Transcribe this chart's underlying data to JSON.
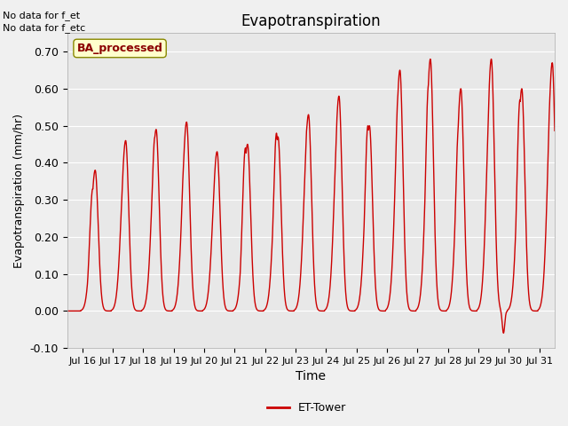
{
  "title": "Evapotranspiration",
  "xlabel": "Time",
  "ylabel": "Evapotranspiration (mm/hr)",
  "ylim": [
    -0.1,
    0.75
  ],
  "yticks": [
    -0.1,
    0.0,
    0.1,
    0.2,
    0.3,
    0.4,
    0.5,
    0.6,
    0.7
  ],
  "ytick_labels": [
    "-0.10",
    "0.00",
    "0.10",
    "0.20",
    "0.30",
    "0.40",
    "0.50",
    "0.60",
    "0.70"
  ],
  "xtick_labels": [
    "Jul 16",
    "Jul 17",
    "Jul 18",
    "Jul 19",
    "Jul 20",
    "Jul 21",
    "Jul 22",
    "Jul 23",
    "Jul 24",
    "Jul 25",
    "Jul 26",
    "Jul 27",
    "Jul 28",
    "Jul 29",
    "Jul 30",
    "Jul 31"
  ],
  "line_color": "#cc0000",
  "legend_label": "ET-Tower",
  "note1": "No data for f_et",
  "note2": "No data for f_etc",
  "ba_label": "BA_processed",
  "background_color": "#e8e8e8",
  "fig_background": "#f0f0f0",
  "line_width": 1.0,
  "days": [
    16,
    17,
    18,
    19,
    20,
    21,
    22,
    23,
    24,
    25,
    26,
    27,
    28,
    29,
    30,
    31
  ],
  "peaks1": [
    0.38,
    0.46,
    0.49,
    0.51,
    0.43,
    0.45,
    0.47,
    0.53,
    0.58,
    0.5,
    0.65,
    0.68,
    0.6,
    0.68,
    0.6,
    0.67
  ],
  "peaks2": [
    0.33,
    0.35,
    0.47,
    0.41,
    0.43,
    0.44,
    0.48,
    0.5,
    0.45,
    0.5,
    0.59,
    0.61,
    0.5,
    0.5,
    0.57,
    0.6
  ],
  "peak2_offsets": [
    -0.08,
    -0.06,
    -0.04,
    -0.07,
    0.0,
    -0.07,
    -0.05,
    -0.04,
    -0.06,
    -0.05,
    -0.05,
    -0.06,
    -0.07,
    -0.06,
    -0.06,
    -0.05
  ],
  "has_double": [
    true,
    true,
    true,
    true,
    false,
    true,
    true,
    true,
    true,
    true,
    true,
    true,
    true,
    true,
    true,
    true
  ],
  "neg_dip_day": 29,
  "neg_dip_val": -0.06
}
